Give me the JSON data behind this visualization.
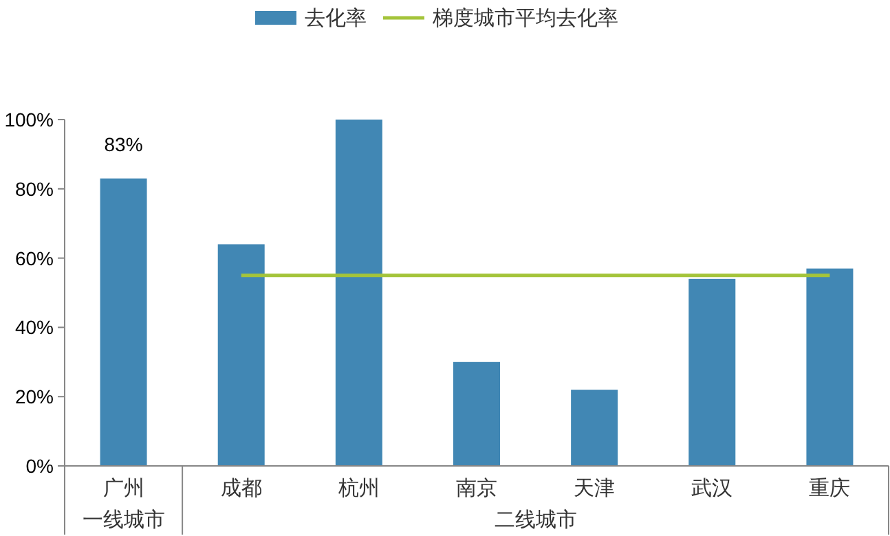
{
  "chart_data": {
    "type": "bar",
    "categories": [
      "广州",
      "成都",
      "杭州",
      "南京",
      "天津",
      "武汉",
      "重庆"
    ],
    "series": [
      {
        "name": "去化率",
        "color": "#4187b4",
        "values": [
          83,
          64,
          100,
          30,
          22,
          54,
          57
        ],
        "value_labels": [
          "83%",
          null,
          null,
          null,
          null,
          null,
          null
        ]
      },
      {
        "name": "梯度城市平均去化率",
        "type": "line",
        "color": "#a4c43a",
        "values": [
          null,
          55,
          55,
          55,
          55,
          55,
          55
        ]
      }
    ],
    "ylim": [
      0,
      100
    ],
    "yticks": [
      {
        "value": 0,
        "label": "0%"
      },
      {
        "value": 20,
        "label": "20%"
      },
      {
        "value": 40,
        "label": "40%"
      },
      {
        "value": 60,
        "label": "60%"
      },
      {
        "value": 80,
        "label": "80%"
      },
      {
        "value": 100,
        "label": "100%"
      }
    ],
    "annotations": [
      "一线城市",
      "二线城市"
    ],
    "legend": "top",
    "grid": false
  }
}
